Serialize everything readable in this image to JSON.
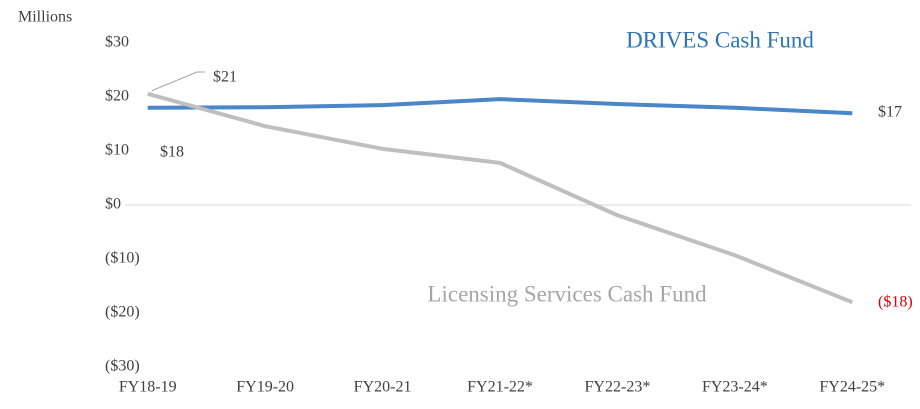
{
  "chart_data": {
    "type": "line",
    "y_axis_label": "Millions",
    "categories": [
      "FY18-19",
      "FY19-20",
      "FY20-21",
      "FY21-22*",
      "FY22-23*",
      "FY23-24*",
      "FY24-25*"
    ],
    "series": [
      {
        "name": "DRIVES Cash Fund",
        "color": "#4a86c8",
        "values": [
          18,
          18.1,
          18.5,
          19.6,
          18.7,
          18,
          17
        ],
        "value_labels": [
          "$18",
          null,
          null,
          null,
          null,
          null,
          "$17"
        ]
      },
      {
        "name": "Licensing Services Cash Fund",
        "color": "#bfbfbf",
        "values": [
          20.6,
          14.6,
          10.4,
          7.8,
          -1.9,
          -9.3,
          -18
        ],
        "value_labels": [
          "$21",
          null,
          null,
          null,
          null,
          null,
          "($18)"
        ]
      }
    ],
    "ylim": [
      -30,
      30
    ],
    "yticks": [
      {
        "value": 30,
        "label": "$30"
      },
      {
        "value": 20,
        "label": "$20"
      },
      {
        "value": 10,
        "label": "$10"
      },
      {
        "value": 0,
        "label": "$0"
      },
      {
        "value": -10,
        "label": "($10)"
      },
      {
        "value": -20,
        "label": "($20)"
      },
      {
        "value": -30,
        "label": "($30)"
      }
    ],
    "grid": false,
    "zero_line": true
  }
}
